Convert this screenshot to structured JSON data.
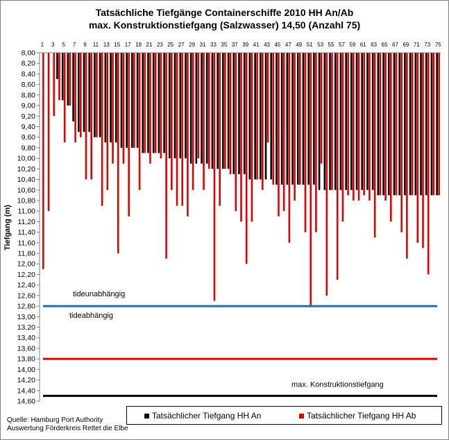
{
  "chart_data": {
    "type": "bar",
    "title": "Tatsächliche Tiefgänge Containerschiffe 2010 HH An/Ab",
    "subtitle": "max. Konstruktionstiefgang (Salzwasser) 14,50 (Anzahl 75)",
    "ylabel": "Tiefgang (m)",
    "ylim": [
      8.0,
      14.6
    ],
    "y_inverted": true,
    "y_ticks": [
      "8,00",
      "8,20",
      "8,40",
      "8,60",
      "8,80",
      "9,00",
      "9,20",
      "9,40",
      "9,60",
      "9,80",
      "10,00",
      "10,20",
      "10,40",
      "10,60",
      "10,80",
      "11,00",
      "11,20",
      "11,40",
      "11,60",
      "11,80",
      "12,00",
      "12,20",
      "12,40",
      "12,60",
      "12,80",
      "13,00",
      "13,20",
      "13,40",
      "13,60",
      "13,80",
      "14,00",
      "14,20",
      "14,40",
      "14,60"
    ],
    "x_ticks": [
      "1",
      "3",
      "5",
      "7",
      "9",
      "11",
      "13",
      "15",
      "17",
      "19",
      "21",
      "23",
      "25",
      "27",
      "29",
      "31",
      "33",
      "35",
      "37",
      "39",
      "41",
      "43",
      "45",
      "47",
      "49",
      "51",
      "53",
      "55",
      "57",
      "59",
      "61",
      "63",
      "65",
      "67",
      "69",
      "71",
      "73",
      "75"
    ],
    "categories": [
      1,
      2,
      3,
      4,
      5,
      6,
      7,
      8,
      9,
      10,
      11,
      12,
      13,
      14,
      15,
      16,
      17,
      18,
      19,
      20,
      21,
      22,
      23,
      24,
      25,
      26,
      27,
      28,
      29,
      30,
      31,
      32,
      33,
      34,
      35,
      36,
      37,
      38,
      39,
      40,
      41,
      42,
      43,
      44,
      45,
      46,
      47,
      48,
      49,
      50,
      51,
      52,
      53,
      54,
      55,
      56,
      57,
      58,
      59,
      60,
      61,
      62,
      63,
      64,
      65,
      66,
      67,
      68,
      69,
      70,
      71,
      72,
      73,
      74,
      75
    ],
    "series": [
      {
        "name": "Tatsächlicher Tiefgang HH An",
        "color": "#000000",
        "values": [
          8.0,
          8.0,
          8.0,
          8.5,
          8.9,
          9.0,
          9.3,
          9.5,
          9.5,
          9.5,
          9.6,
          9.6,
          9.7,
          9.7,
          9.7,
          9.8,
          9.8,
          9.8,
          9.8,
          9.9,
          9.9,
          9.9,
          9.9,
          9.9,
          10.0,
          10.0,
          10.0,
          10.0,
          10.1,
          10.1,
          10.1,
          10.1,
          10.2,
          10.2,
          10.2,
          10.2,
          10.3,
          10.3,
          10.3,
          10.4,
          10.4,
          10.4,
          10.4,
          10.4,
          10.5,
          10.5,
          10.5,
          10.5,
          10.5,
          10.5,
          10.5,
          10.5,
          10.6,
          10.6,
          10.6,
          10.6,
          10.6,
          10.6,
          10.6,
          10.6,
          10.6,
          10.6,
          10.6,
          10.7,
          10.7,
          10.7,
          10.7,
          10.7,
          10.7,
          10.7,
          10.7,
          10.7,
          10.7,
          10.7,
          10.7
        ]
      },
      {
        "name": "Tatsächlicher Tiefgang HH Ab",
        "color": "#e00000",
        "values": [
          12.1,
          11.0,
          9.2,
          8.9,
          9.7,
          9.0,
          9.7,
          9.6,
          10.4,
          10.4,
          9.6,
          10.9,
          10.6,
          10.1,
          11.8,
          10.1,
          11.1,
          9.8,
          10.6,
          9.9,
          10.1,
          9.9,
          10.0,
          11.9,
          10.6,
          10.9,
          10.9,
          11.1,
          10.6,
          10.0,
          10.6,
          10.2,
          12.7,
          10.9,
          10.2,
          10.3,
          11.0,
          11.2,
          12.0,
          11.2,
          10.4,
          10.6,
          9.7,
          10.5,
          11.1,
          11.0,
          11.6,
          10.8,
          10.5,
          11.4,
          12.8,
          11.4,
          10.1,
          12.6,
          10.6,
          12.3,
          11.2,
          10.7,
          10.8,
          10.8,
          10.7,
          10.8,
          11.5,
          10.7,
          10.8,
          11.2,
          10.7,
          11.4,
          11.9,
          10.7,
          11.6,
          11.7,
          12.2,
          10.7,
          10.7
        ]
      }
    ],
    "reference_lines": [
      {
        "label": "tideunabhängig",
        "value": 12.8,
        "color": "#1f6fb0"
      },
      {
        "label": "tideabhängig",
        "value": 13.8,
        "color": "#e00000"
      },
      {
        "label": "max. Konstruktionstiefgang",
        "value": 14.5,
        "color": "#000000"
      }
    ],
    "legend_position": "bottom-right",
    "grid": false,
    "source_lines": [
      "Quelle: Hamburg Port Authority",
      "Auswertung Förderkreis Rettet die Elbe"
    ]
  }
}
